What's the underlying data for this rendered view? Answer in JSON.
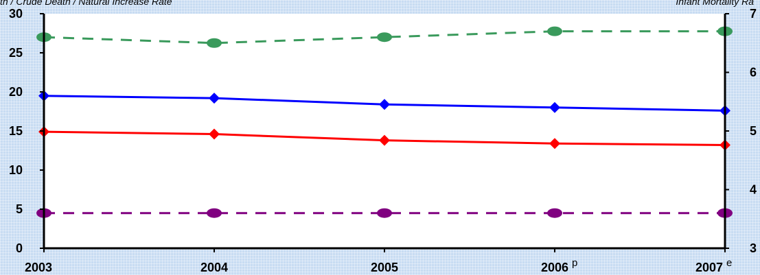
{
  "chart_data": {
    "type": "line",
    "y_axis_left_title": "th / Crude Death / Natural Increase Rate",
    "y_axis_right_title": "Infant Mortality Ra",
    "categories": [
      "2003",
      "2004",
      "2005",
      "2006",
      "2007"
    ],
    "category_suffixes": [
      "",
      "",
      "",
      "p",
      "e"
    ],
    "ylim_left": [
      0,
      30
    ],
    "yticks_left": [
      "0",
      "5",
      "10",
      "15",
      "20",
      "25",
      "30"
    ],
    "ylim_right": [
      3,
      7
    ],
    "yticks_right": [
      "3",
      "4",
      "5",
      "6",
      "7"
    ],
    "series": [
      {
        "axis": "right",
        "style": "dashed",
        "marker": "circle",
        "color": "#3a9a5c",
        "values": [
          6.6,
          6.5,
          6.6,
          6.7,
          6.7
        ]
      },
      {
        "axis": "left",
        "style": "solid",
        "marker": "diamond",
        "color": "#0000ff",
        "values": [
          19.5,
          19.2,
          18.4,
          18.0,
          17.6
        ]
      },
      {
        "axis": "left",
        "style": "solid",
        "marker": "diamond",
        "color": "#ff0000",
        "values": [
          14.9,
          14.6,
          13.8,
          13.4,
          13.2
        ]
      },
      {
        "axis": "left",
        "style": "dashed",
        "marker": "circle",
        "color": "#800080",
        "values": [
          4.5,
          4.5,
          4.5,
          4.5,
          4.5
        ]
      }
    ],
    "grid": false
  }
}
